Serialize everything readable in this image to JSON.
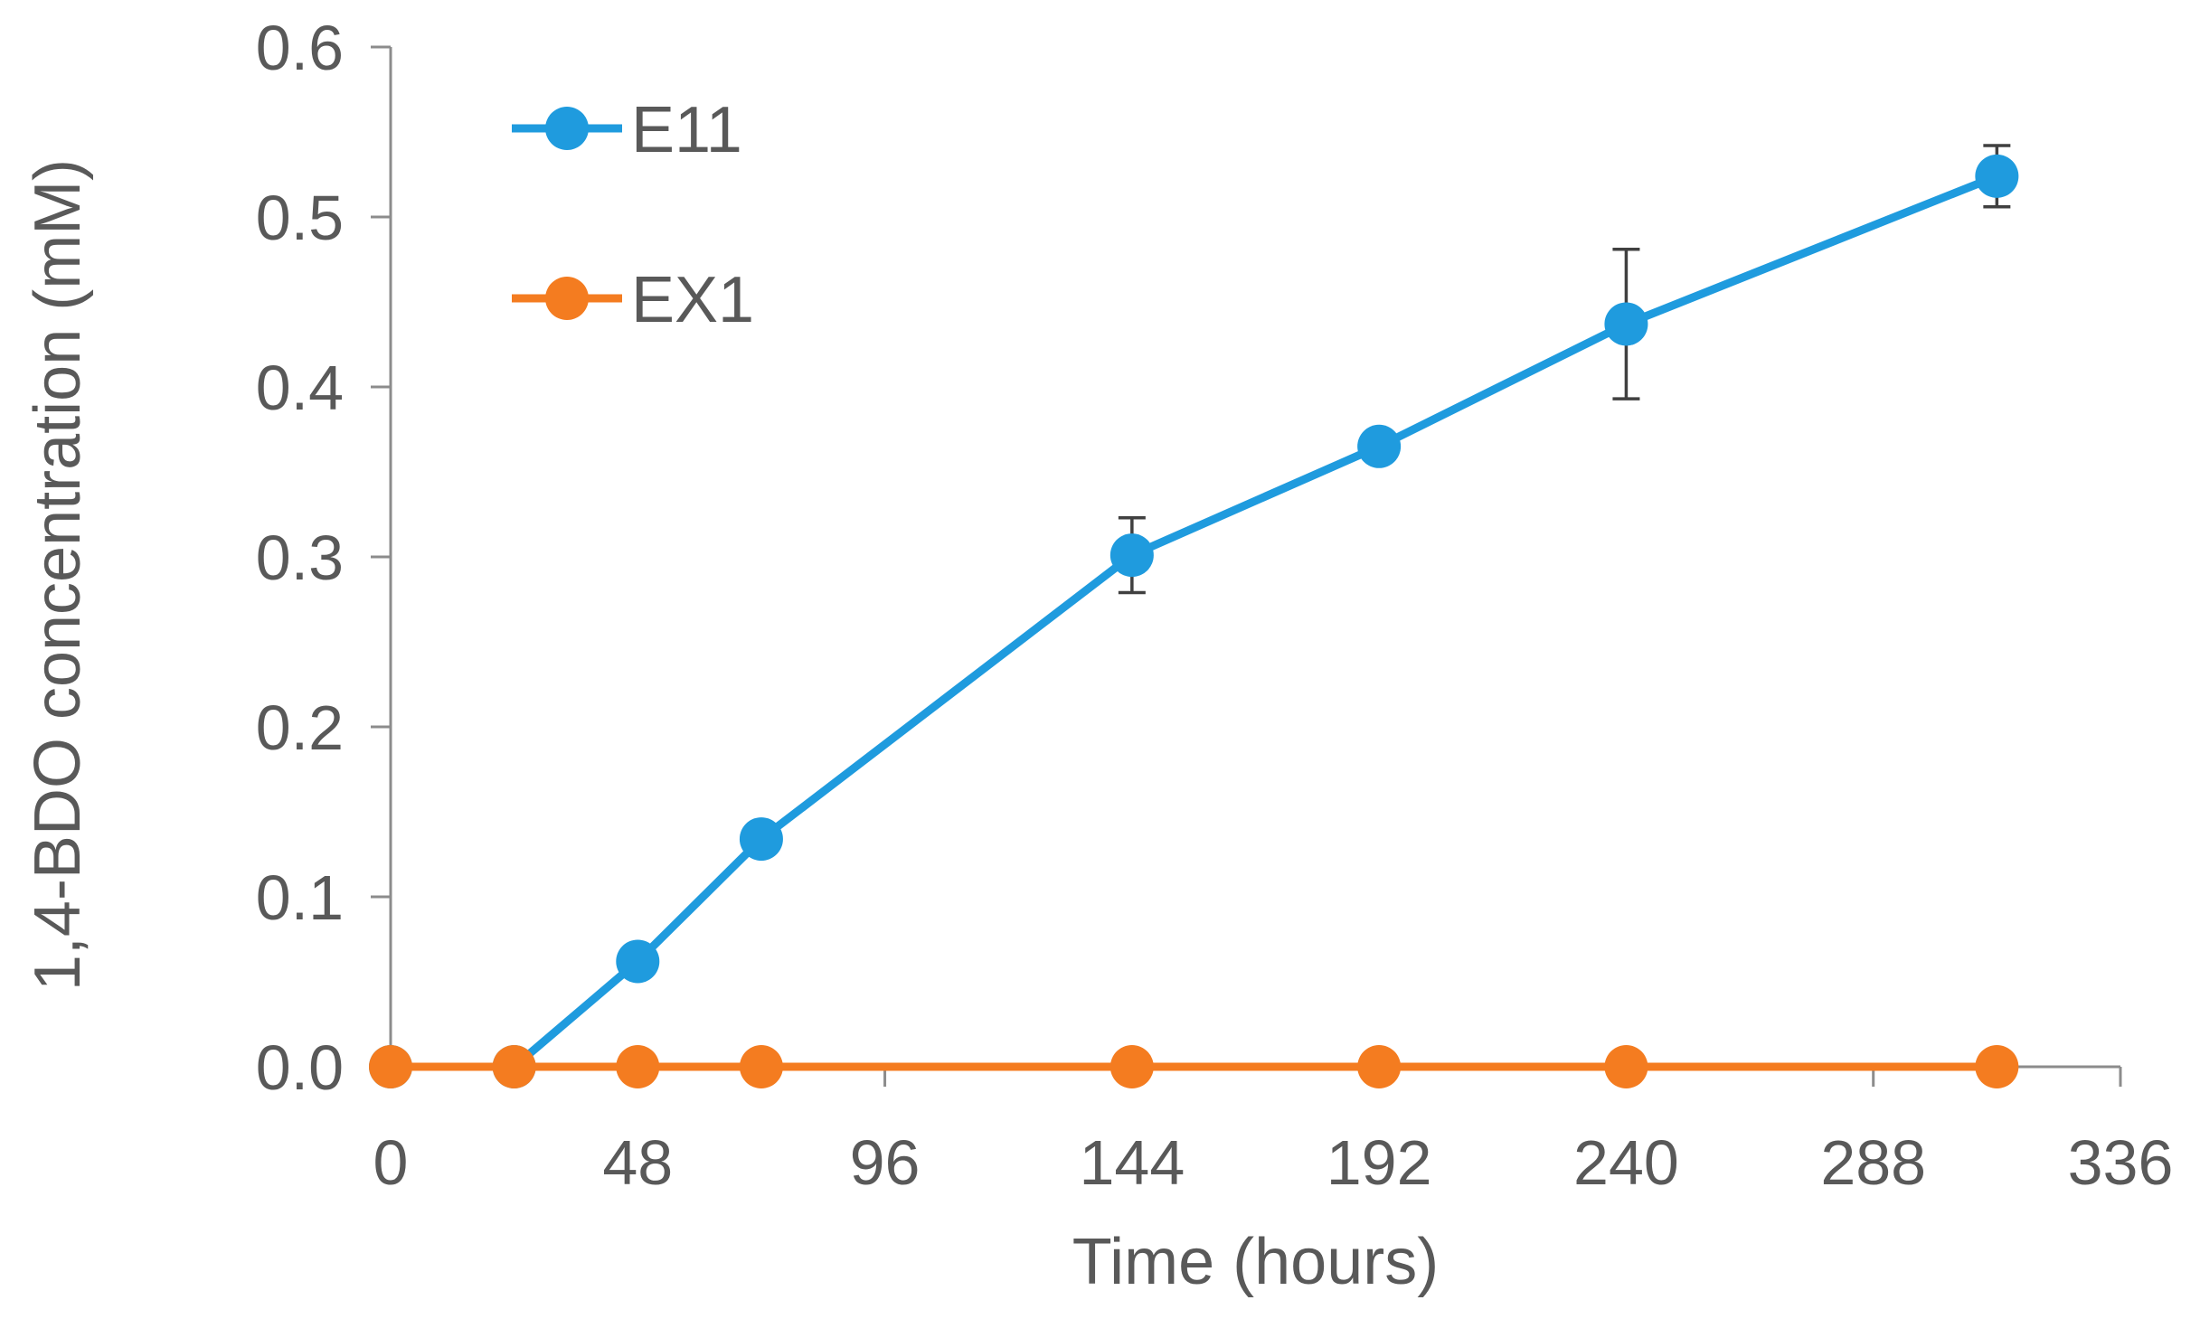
{
  "chart_data": {
    "type": "line",
    "title": "",
    "xlabel": "Time (hours)",
    "ylabel": "1,4-BDO concentration (mM)",
    "xlim": [
      0,
      336
    ],
    "ylim": [
      0,
      0.6
    ],
    "x_ticks": [
      0,
      48,
      96,
      144,
      192,
      240,
      288,
      336
    ],
    "y_ticks": [
      0.0,
      0.1,
      0.2,
      0.3,
      0.4,
      0.5,
      0.6
    ],
    "y_tick_labels": [
      "0.0",
      "0.1",
      "0.2",
      "0.3",
      "0.4",
      "0.5",
      "0.6"
    ],
    "grid": false,
    "legend_position": "top-left",
    "series": [
      {
        "name": "E11",
        "color": "#1f9bde",
        "x": [
          0,
          24,
          48,
          72,
          144,
          192,
          240,
          312
        ],
        "y": [
          0.0,
          0.0,
          0.062,
          0.134,
          0.301,
          0.365,
          0.437,
          0.524
        ],
        "error": [
          0,
          0,
          0,
          0,
          0.022,
          0,
          0.044,
          0.018
        ]
      },
      {
        "name": "EX1",
        "color": "#f47c20",
        "x": [
          0,
          24,
          48,
          72,
          144,
          192,
          240,
          312
        ],
        "y": [
          0.0,
          0.0,
          0.0,
          0.0,
          0.0,
          0.0,
          0.0,
          0.0
        ],
        "error": [
          0,
          0,
          0,
          0,
          0,
          0,
          0,
          0
        ]
      }
    ]
  }
}
